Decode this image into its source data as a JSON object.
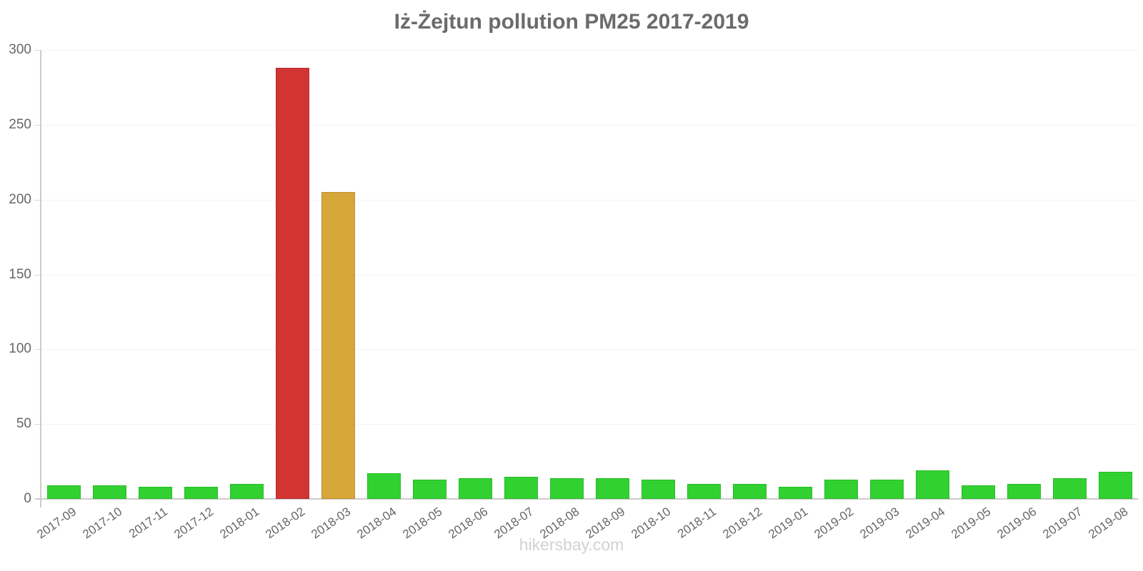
{
  "title": "Iż-Żejtun pollution PM25 2017-2019",
  "footer": "hikersbay.com",
  "chart_data": {
    "type": "bar",
    "title": "Iż-Żejtun pollution PM25 2017-2019",
    "xlabel": "",
    "ylabel": "",
    "categories": [
      "2017-09",
      "2017-10",
      "2017-11",
      "2017-12",
      "2018-01",
      "2018-02",
      "2018-03",
      "2018-04",
      "2018-05",
      "2018-06",
      "2018-07",
      "2018-08",
      "2018-09",
      "2018-10",
      "2018-11",
      "2018-12",
      "2019-01",
      "2019-02",
      "2019-03",
      "2019-04",
      "2019-05",
      "2019-06",
      "2019-07",
      "2019-08"
    ],
    "values": [
      9,
      9,
      8,
      8,
      10,
      288,
      205,
      17,
      13,
      14,
      15,
      14,
      14,
      13,
      10,
      10,
      8,
      13,
      13,
      19,
      9,
      10,
      14,
      18
    ],
    "ylim": [
      0,
      300
    ],
    "yticks": [
      0,
      50,
      100,
      150,
      200,
      250,
      300
    ],
    "grid": "faint-horizontal",
    "legend": "none",
    "default_color": "#32d132",
    "default_border_color": "#2aba2a",
    "point_colors": {
      "2018-02": "#d23434",
      "2018-03": "#d8a73a"
    },
    "point_border_colors": {
      "2018-02": "#b22f2f",
      "2018-03": "#c0922d"
    }
  },
  "colors": {
    "axis": "#cccccc",
    "grid": "#f4f4f4",
    "title_text": "#6b6b6b",
    "tick_text": "#666666",
    "footer_text": "#d2d2d2"
  }
}
